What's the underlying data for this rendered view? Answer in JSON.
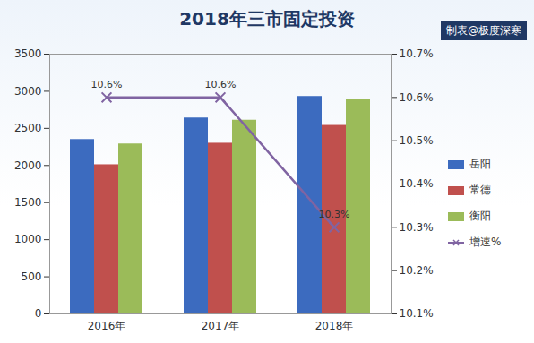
{
  "chart_data": {
    "type": "bar",
    "title": "2018年三市固定投资",
    "subtitle": "制表@极度深寒",
    "categories": [
      "2016年",
      "2017年",
      "2018年"
    ],
    "series": [
      {
        "name": "岳阳",
        "color": "#3c6bbf",
        "values": [
          2350,
          2640,
          2930
        ]
      },
      {
        "name": "常德",
        "color": "#c0504d",
        "values": [
          2010,
          2300,
          2540
        ]
      },
      {
        "name": "衡阳",
        "color": "#9bbb59",
        "values": [
          2290,
          2610,
          2890
        ]
      },
      {
        "name": "增速%",
        "type": "line",
        "axis": "y2",
        "color": "#8064a2",
        "marker": "x",
        "line_style": "solid",
        "data_labels": true,
        "values": [
          10.6,
          10.6,
          10.3
        ],
        "value_labels": [
          "10.6%",
          "10.6%",
          "10.3%"
        ]
      }
    ],
    "ylim": [
      0,
      3500
    ],
    "yticks": [
      0,
      500,
      1000,
      1500,
      2000,
      2500,
      3000,
      3500
    ],
    "y2lim": [
      10.1,
      10.7
    ],
    "y2ticks": [
      {
        "value": 10.1,
        "label": "10.1%"
      },
      {
        "value": 10.2,
        "label": "10.2%"
      },
      {
        "value": 10.3,
        "label": "10.3%"
      },
      {
        "value": 10.4,
        "label": "10.4%"
      },
      {
        "value": 10.5,
        "label": "10.5%"
      },
      {
        "value": 10.6,
        "label": "10.6%"
      },
      {
        "value": 10.7,
        "label": "10.7%"
      }
    ],
    "legend": "right",
    "grid": false
  }
}
